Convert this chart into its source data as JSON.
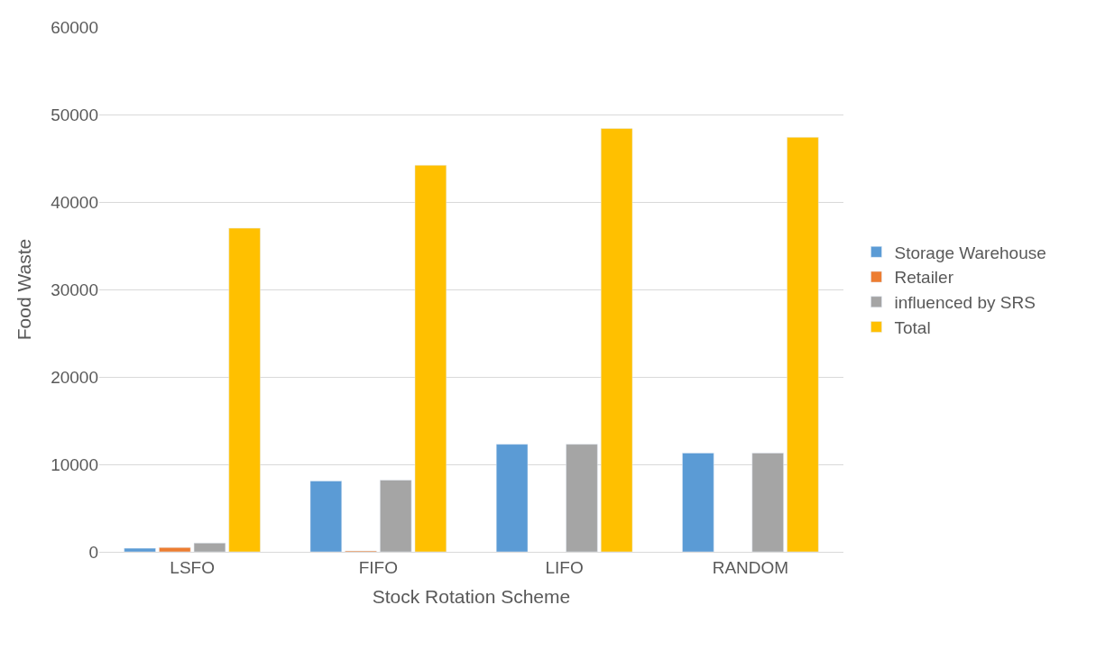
{
  "chart_data": {
    "type": "bar",
    "xlabel": "Stock Rotation Scheme",
    "ylabel": "Food Waste",
    "categories": [
      "LSFO",
      "FIFO",
      "LIFO",
      "RANDOM"
    ],
    "series": [
      {
        "name": "Storage Warehouse",
        "color": "#5b9bd5",
        "values": [
          400,
          8100,
          12300,
          11300
        ]
      },
      {
        "name": "Retailer",
        "color": "#ed7d31",
        "values": [
          500,
          100,
          null,
          null
        ]
      },
      {
        "name": "influenced by SRS",
        "color": "#a5a5a5",
        "values": [
          1000,
          8200,
          12300,
          11300
        ]
      },
      {
        "name": "Total",
        "color": "#ffc000",
        "values": [
          37000,
          44200,
          48400,
          47400
        ]
      }
    ],
    "ylim": [
      0,
      60000
    ],
    "yticks": [
      0,
      10000,
      20000,
      30000,
      40000,
      50000,
      60000
    ],
    "grid": "y",
    "legend": "right"
  }
}
